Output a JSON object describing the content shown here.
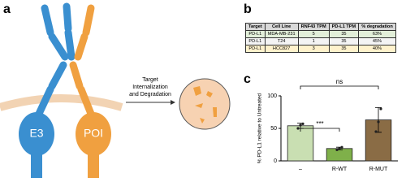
{
  "panel_labels": [
    "a",
    "b",
    "c"
  ],
  "diagram": {
    "left_label": "E3",
    "right_label": "POI",
    "arrow_text": [
      "Target",
      "Internalization",
      "and Degradation"
    ]
  },
  "table": {
    "header": [
      "Target",
      "Cell Line",
      "RNF43 TPM",
      "PD-L1 TPM",
      "% degradation"
    ],
    "rows": [
      [
        "PD-L1",
        "MDA-MB-231",
        "5",
        "35",
        "63%"
      ],
      [
        "PD-L1",
        "T24",
        "1",
        "35",
        "45%"
      ],
      [
        "PD-L1",
        "HCC827",
        "3",
        "35",
        "40%"
      ]
    ]
  },
  "chart_data": {
    "type": "bar",
    "y_label": "% PD-L1 relative to Untreated",
    "categories": [
      "–",
      "R-WT",
      "R-MUT"
    ],
    "values": [
      54,
      19,
      63
    ],
    "errors": [
      4,
      2,
      19
    ],
    "points": [
      [
        50,
        55,
        57
      ],
      [
        17,
        19,
        21
      ],
      [
        45,
        60,
        80
      ]
    ],
    "colors": [
      "#c9dfb2",
      "#7fb04a",
      "#8a6c45"
    ],
    "annotations": [
      "***",
      "ns"
    ],
    "ylim": [
      0,
      100
    ],
    "yticks": [
      0,
      50,
      100
    ]
  }
}
